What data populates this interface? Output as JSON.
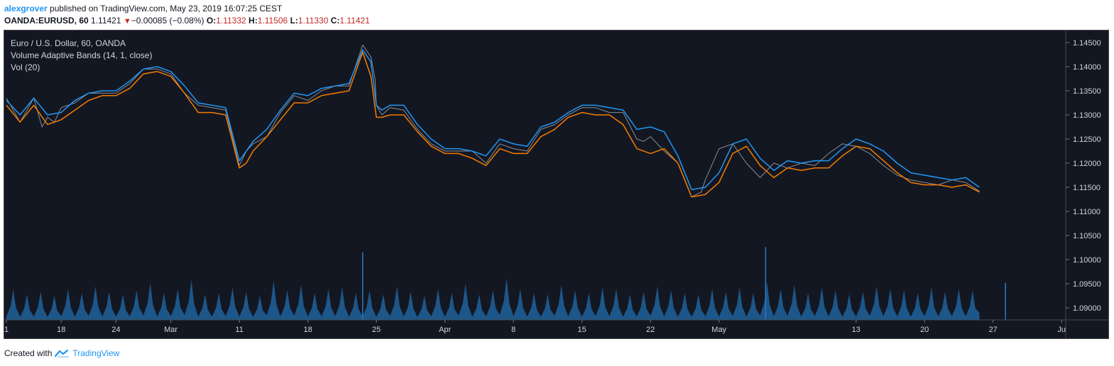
{
  "header": {
    "author": "alexgrover",
    "published_text": "published on TradingView.com, May 23, 2019 16:07:25 CEST"
  },
  "symbol_bar": {
    "symbol": "OANDA:EURUSD, 60",
    "last": "1.11421",
    "change": "−0.00085 (−0.08%)",
    "open_label": "O:",
    "open": "1.11332",
    "high_label": "H:",
    "high": "1.11506",
    "low_label": "L:",
    "low": "1.11330",
    "close_label": "C:",
    "close": "1.11421"
  },
  "legend": {
    "title": "Euro / U.S. Dollar, 60, OANDA",
    "indicator": "Volume Adaptive Bands (14, 1, close)",
    "volume": "Vol (20)"
  },
  "footer": {
    "created_with": "Created with",
    "brand": "TradingView"
  },
  "colors": {
    "background": "#131722",
    "price": "#8a8d96",
    "upper_band": "#2196f3",
    "lower_band": "#f57c00",
    "volume": "#1e5a8e",
    "axis_text": "#d1d4dc"
  },
  "chart_data": {
    "type": "line",
    "title": "Euro / U.S. Dollar, 60, OANDA",
    "ylim": [
      1.0875,
      1.1475
    ],
    "y_ticks": [
      "1.14500",
      "1.14000",
      "1.13500",
      "1.13000",
      "1.12500",
      "1.12000",
      "1.11500",
      "1.11000",
      "1.10500",
      "1.10000",
      "1.09500",
      "1.09000"
    ],
    "x_ticks": [
      {
        "label": "1",
        "t": 0
      },
      {
        "label": "18",
        "t": 4
      },
      {
        "label": "24",
        "t": 8
      },
      {
        "label": "Mar",
        "t": 12
      },
      {
        "label": "11",
        "t": 17
      },
      {
        "label": "18",
        "t": 22
      },
      {
        "label": "25",
        "t": 27
      },
      {
        "label": "Apr",
        "t": 32
      },
      {
        "label": "8",
        "t": 37
      },
      {
        "label": "15",
        "t": 42
      },
      {
        "label": "22",
        "t": 47
      },
      {
        "label": "May",
        "t": 52
      },
      {
        "label": "13",
        "t": 62
      },
      {
        "label": "20",
        "t": 67
      },
      {
        "label": "27",
        "t": 72
      },
      {
        "label": "Ju",
        "t": 77
      }
    ],
    "x_range": [
      0,
      77.3
    ],
    "series": [
      {
        "name": "Price",
        "t": [
          0,
          1,
          2,
          2.6,
          3,
          3.5,
          4,
          5,
          6,
          7,
          8,
          9,
          10,
          11,
          12,
          13,
          14,
          15,
          16,
          17,
          17.5,
          18,
          19,
          20,
          21,
          22,
          23,
          24,
          25,
          26,
          26.6,
          26.9,
          27,
          27.4,
          28,
          29,
          30,
          31,
          32,
          33,
          34,
          35,
          36,
          37,
          38,
          39,
          40,
          41,
          42,
          43,
          44,
          45,
          46,
          46.5,
          47,
          48,
          49,
          50,
          50.7,
          51,
          52,
          53,
          54,
          55,
          56,
          57,
          58,
          59,
          60,
          61,
          62,
          63,
          64,
          65,
          66,
          67,
          68,
          69,
          70,
          71
        ],
        "values": [
          1.1335,
          1.1285,
          1.1335,
          1.1275,
          1.1295,
          1.1285,
          1.1315,
          1.1325,
          1.1345,
          1.1345,
          1.1345,
          1.1365,
          1.1395,
          1.1395,
          1.1385,
          1.1345,
          1.132,
          1.1315,
          1.131,
          1.1195,
          1.1225,
          1.124,
          1.1255,
          1.1305,
          1.134,
          1.133,
          1.135,
          1.136,
          1.136,
          1.1445,
          1.142,
          1.1375,
          1.132,
          1.13,
          1.1315,
          1.131,
          1.127,
          1.124,
          1.1225,
          1.1225,
          1.1225,
          1.12,
          1.124,
          1.123,
          1.1225,
          1.127,
          1.128,
          1.13,
          1.1315,
          1.1315,
          1.1305,
          1.1305,
          1.125,
          1.1245,
          1.1255,
          1.1225,
          1.12,
          1.113,
          1.114,
          1.1165,
          1.123,
          1.124,
          1.12,
          1.117,
          1.12,
          1.119,
          1.12,
          1.1195,
          1.122,
          1.124,
          1.1235,
          1.122,
          1.1195,
          1.1175,
          1.1165,
          1.116,
          1.1155,
          1.1165,
          1.116,
          1.1142
        ]
      },
      {
        "name": "Upper Band",
        "t": [
          0,
          1,
          2,
          3,
          4,
          5,
          6,
          7,
          8,
          9,
          10,
          11,
          12,
          13,
          14,
          15,
          16,
          17,
          17.5,
          18,
          19,
          20,
          21,
          22,
          23,
          24,
          25,
          26,
          26.6,
          27,
          27.4,
          28,
          29,
          30,
          31,
          32,
          33,
          34,
          35,
          36,
          37,
          38,
          39,
          40,
          41,
          42,
          43,
          44,
          45,
          46,
          47,
          48,
          49,
          50,
          51,
          52,
          53,
          54,
          55,
          56,
          57,
          58,
          59,
          60,
          61,
          62,
          63,
          64,
          65,
          66,
          67,
          68,
          69,
          70,
          71
        ],
        "values": [
          1.133,
          1.13,
          1.1335,
          1.13,
          1.1305,
          1.133,
          1.1345,
          1.135,
          1.135,
          1.137,
          1.1395,
          1.14,
          1.139,
          1.136,
          1.1325,
          1.132,
          1.1315,
          1.1205,
          1.1225,
          1.1245,
          1.127,
          1.131,
          1.1345,
          1.134,
          1.1355,
          1.136,
          1.1365,
          1.1435,
          1.141,
          1.132,
          1.131,
          1.132,
          1.132,
          1.128,
          1.125,
          1.123,
          1.123,
          1.1225,
          1.1215,
          1.125,
          1.124,
          1.1235,
          1.1275,
          1.1285,
          1.1305,
          1.132,
          1.132,
          1.1315,
          1.131,
          1.127,
          1.1275,
          1.1265,
          1.1215,
          1.1145,
          1.115,
          1.118,
          1.124,
          1.125,
          1.121,
          1.1185,
          1.1205,
          1.12,
          1.1205,
          1.1205,
          1.123,
          1.125,
          1.124,
          1.1225,
          1.12,
          1.118,
          1.1175,
          1.117,
          1.1165,
          1.117,
          1.115
        ]
      },
      {
        "name": "Lower Band",
        "t": [
          0,
          1,
          2,
          3,
          4,
          5,
          6,
          7,
          8,
          9,
          10,
          11,
          12,
          13,
          14,
          15,
          16,
          17,
          17.5,
          18,
          19,
          20,
          21,
          22,
          23,
          24,
          25,
          26,
          26.6,
          27,
          27.4,
          28,
          29,
          30,
          31,
          32,
          33,
          34,
          35,
          36,
          37,
          38,
          39,
          40,
          41,
          42,
          43,
          44,
          45,
          46,
          47,
          48,
          49,
          50,
          51,
          52,
          53,
          54,
          55,
          56,
          57,
          58,
          59,
          60,
          61,
          62,
          63,
          64,
          65,
          66,
          67,
          68,
          69,
          70,
          71
        ],
        "values": [
          1.132,
          1.1285,
          1.132,
          1.128,
          1.129,
          1.131,
          1.133,
          1.134,
          1.134,
          1.1355,
          1.1385,
          1.139,
          1.138,
          1.1345,
          1.1305,
          1.1305,
          1.13,
          1.119,
          1.12,
          1.1225,
          1.1255,
          1.129,
          1.1325,
          1.1325,
          1.134,
          1.1345,
          1.135,
          1.143,
          1.138,
          1.1295,
          1.1295,
          1.13,
          1.13,
          1.1265,
          1.1235,
          1.122,
          1.122,
          1.121,
          1.1195,
          1.123,
          1.122,
          1.122,
          1.1255,
          1.127,
          1.1295,
          1.1305,
          1.13,
          1.13,
          1.128,
          1.123,
          1.122,
          1.123,
          1.12,
          1.113,
          1.1135,
          1.116,
          1.122,
          1.1235,
          1.1195,
          1.117,
          1.119,
          1.1185,
          1.119,
          1.119,
          1.1215,
          1.1235,
          1.123,
          1.1205,
          1.118,
          1.116,
          1.1155,
          1.1155,
          1.115,
          1.1155,
          1.114
        ]
      }
    ],
    "volume_peaks": [
      0.45,
      0.38,
      0.42,
      0.36,
      0.46,
      0.4,
      0.5,
      0.42,
      0.38,
      0.44,
      0.55,
      0.4,
      0.46,
      0.6,
      0.38,
      0.4,
      0.48,
      0.42,
      0.36,
      0.58,
      0.44,
      0.52,
      0.4,
      0.46,
      0.48,
      0.4,
      0.44,
      0.38,
      0.5,
      0.42,
      0.36,
      0.46,
      0.4,
      0.54,
      0.38,
      0.44,
      0.62,
      0.46,
      0.4,
      0.38,
      0.52,
      0.44,
      0.4,
      0.48,
      0.46,
      0.38,
      0.42,
      0.5,
      0.44,
      0.4,
      0.38,
      0.46,
      0.42,
      0.48,
      0.4,
      0.56,
      0.46,
      0.52,
      0.4,
      0.48,
      0.44,
      0.38,
      0.42,
      0.5,
      0.46,
      0.44,
      0.4,
      0.48,
      0.42,
      0.46,
      0.44
    ],
    "volume_spikes": [
      {
        "t": 26.0,
        "value": 1.0
      },
      {
        "t": 55.4,
        "value": 1.08
      },
      {
        "t": 72.9,
        "value": 0.55
      }
    ]
  }
}
